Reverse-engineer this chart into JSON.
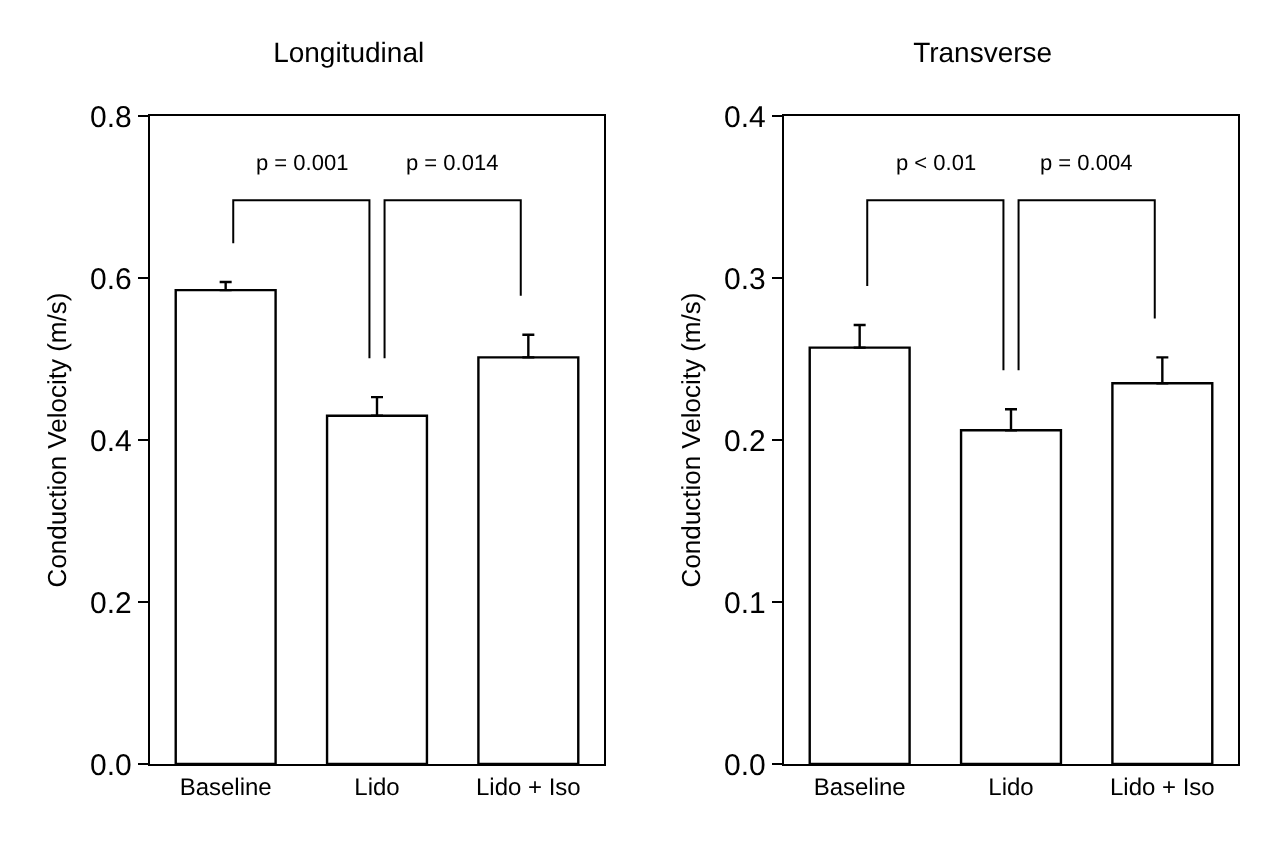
{
  "chart_data": [
    {
      "type": "bar",
      "title": "Longitudinal",
      "ylabel": "Conduction Velocity (m/s)",
      "categories": [
        "Baseline",
        "Lido",
        "Lido + Iso"
      ],
      "series": [
        {
          "color": "#ffffff",
          "values": [
            0.585,
            0.43,
            0.502
          ],
          "errors": [
            [
              0.585,
              0.595
            ],
            [
              0.43,
              0.453
            ],
            [
              0.502,
              0.53
            ]
          ]
        }
      ],
      "ylim": [
        0,
        0.8
      ],
      "yticks": [
        {
          "value": 0,
          "label": "0.0"
        },
        0.2,
        0.4,
        0.6,
        0.8
      ],
      "grid": false,
      "annotations": [
        "p = 0.001",
        "p = 0.014"
      ]
    },
    {
      "type": "bar",
      "title": "Transverse",
      "ylabel": "Conduction Velocity (m/s)",
      "categories": [
        "Baseline",
        "Lido",
        "Lido + Iso"
      ],
      "series": [
        {
          "color": "#ffffff",
          "values": [
            0.257,
            0.206,
            0.235
          ],
          "errors": [
            [
              0.257,
              0.271
            ],
            [
              0.206,
              0.219
            ],
            [
              0.235,
              0.251
            ]
          ]
        }
      ],
      "ylim": [
        0,
        0.4
      ],
      "yticks": [
        {
          "value": 0,
          "label": "0.0"
        },
        0.1,
        0.2,
        0.3,
        0.4
      ],
      "grid": false,
      "annotations": [
        "p < 0.01",
        "p = 0.004"
      ]
    }
  ]
}
